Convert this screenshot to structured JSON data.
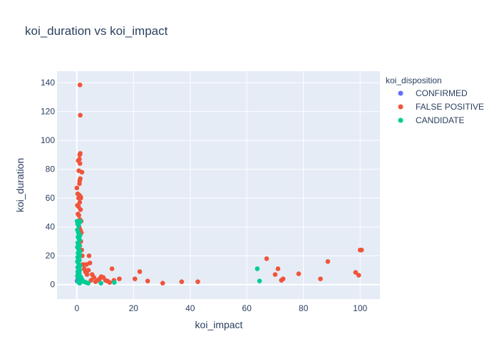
{
  "chart_data": {
    "type": "scatter",
    "title": "koi_duration vs koi_impact",
    "xlabel": "koi_impact",
    "ylabel": "koi_duration",
    "xlim": [
      -7,
      107
    ],
    "ylim": [
      -10,
      148
    ],
    "xticks": [
      0,
      20,
      40,
      60,
      80,
      100
    ],
    "yticks": [
      0,
      20,
      40,
      60,
      80,
      100,
      120,
      140
    ],
    "grid": true,
    "legend_position": "top-right",
    "legend_title": "koi_disposition",
    "series": [
      {
        "name": "CONFIRMED",
        "color": "#636efa",
        "points": [
          [
            0.2,
            3
          ],
          [
            0.4,
            5
          ],
          [
            0.6,
            2
          ],
          [
            0.8,
            8
          ],
          [
            0.3,
            12
          ],
          [
            0.5,
            4
          ],
          [
            0.7,
            6
          ],
          [
            0.1,
            2.5
          ],
          [
            0.9,
            3.5
          ],
          [
            0.45,
            7
          ]
        ]
      },
      {
        "name": "FALSE POSITIVE",
        "color": "#ef553b",
        "points": [
          [
            1.1,
            138.5
          ],
          [
            1.2,
            117.5
          ],
          [
            1.2,
            91
          ],
          [
            1.0,
            90
          ],
          [
            0.9,
            87
          ],
          [
            0.5,
            86
          ],
          [
            1.1,
            84
          ],
          [
            1.8,
            78
          ],
          [
            0.7,
            79
          ],
          [
            1.2,
            73.5
          ],
          [
            1.0,
            72
          ],
          [
            0.9,
            70
          ],
          [
            0.0,
            67
          ],
          [
            0.3,
            63
          ],
          [
            0.6,
            60
          ],
          [
            0.9,
            62
          ],
          [
            1.3,
            61
          ],
          [
            1.4,
            60
          ],
          [
            1.0,
            57
          ],
          [
            0.2,
            55
          ],
          [
            0.6,
            54
          ],
          [
            1.3,
            52
          ],
          [
            0.4,
            49
          ],
          [
            0.7,
            48
          ],
          [
            1.1,
            45
          ],
          [
            1.5,
            44
          ],
          [
            0.3,
            42
          ],
          [
            0.8,
            40
          ],
          [
            1.2,
            38
          ],
          [
            1.6,
            36
          ],
          [
            0.5,
            33
          ],
          [
            1.4,
            30
          ],
          [
            1.0,
            27
          ],
          [
            1.7,
            24
          ],
          [
            1.9,
            20
          ],
          [
            2.2,
            14
          ],
          [
            2.6,
            11
          ],
          [
            3.0,
            9
          ],
          [
            3.4,
            14
          ],
          [
            3.6,
            7
          ],
          [
            4.1,
            10
          ],
          [
            4.3,
            20
          ],
          [
            4.6,
            15
          ],
          [
            5.0,
            3
          ],
          [
            5.4,
            7
          ],
          [
            6.0,
            5
          ],
          [
            6.6,
            2
          ],
          [
            7.3,
            3
          ],
          [
            8.0,
            4
          ],
          [
            8.6,
            5.5
          ],
          [
            9.3,
            5
          ],
          [
            10.1,
            3
          ],
          [
            10.8,
            2.5
          ],
          [
            11.6,
            1.5
          ],
          [
            12.4,
            11
          ],
          [
            13.1,
            3
          ],
          [
            15.0,
            4
          ],
          [
            20.5,
            4
          ],
          [
            22.2,
            9
          ],
          [
            25.0,
            2.5
          ],
          [
            30.3,
            1
          ],
          [
            37.0,
            2
          ],
          [
            42.7,
            2
          ],
          [
            67.0,
            18
          ],
          [
            70.0,
            7
          ],
          [
            71.0,
            11
          ],
          [
            72.2,
            3
          ],
          [
            72.8,
            4
          ],
          [
            78.3,
            7.5
          ],
          [
            86.0,
            4
          ],
          [
            88.6,
            16
          ],
          [
            98.4,
            8.5
          ],
          [
            99.5,
            6.5
          ],
          [
            100.0,
            24
          ],
          [
            100.5,
            24
          ]
        ]
      },
      {
        "name": "CANDIDATE",
        "color": "#00cc96",
        "points": [
          [
            0.1,
            44
          ],
          [
            0.3,
            42
          ],
          [
            0.6,
            41
          ],
          [
            0.9,
            43
          ],
          [
            1.2,
            44
          ],
          [
            0.2,
            38
          ],
          [
            0.5,
            36
          ],
          [
            0.8,
            35
          ],
          [
            1.1,
            34
          ],
          [
            0.4,
            33
          ],
          [
            0.7,
            32
          ],
          [
            1.0,
            31
          ],
          [
            0.3,
            29
          ],
          [
            0.6,
            28
          ],
          [
            0.9,
            27
          ],
          [
            0.2,
            26
          ],
          [
            0.5,
            25
          ],
          [
            0.8,
            24
          ],
          [
            1.1,
            23
          ],
          [
            0.4,
            22
          ],
          [
            0.7,
            21
          ],
          [
            1.0,
            20
          ],
          [
            0.3,
            19
          ],
          [
            0.6,
            18
          ],
          [
            0.9,
            17
          ],
          [
            0.2,
            16
          ],
          [
            0.5,
            15
          ],
          [
            0.8,
            14
          ],
          [
            1.1,
            13
          ],
          [
            0.4,
            12
          ],
          [
            0.7,
            11
          ],
          [
            1.0,
            10
          ],
          [
            0.3,
            9
          ],
          [
            0.6,
            8
          ],
          [
            0.9,
            7
          ],
          [
            0.2,
            6
          ],
          [
            0.5,
            5
          ],
          [
            0.8,
            4
          ],
          [
            1.1,
            3
          ],
          [
            0.4,
            2
          ],
          [
            0.7,
            1.5
          ],
          [
            1.0,
            1
          ],
          [
            1.5,
            5
          ],
          [
            2.0,
            3
          ],
          [
            2.5,
            2
          ],
          [
            3.2,
            1.5
          ],
          [
            4.0,
            1
          ],
          [
            8.5,
            1
          ],
          [
            13.2,
            1.5
          ],
          [
            63.7,
            11
          ],
          [
            64.5,
            2.5
          ]
        ]
      }
    ]
  }
}
